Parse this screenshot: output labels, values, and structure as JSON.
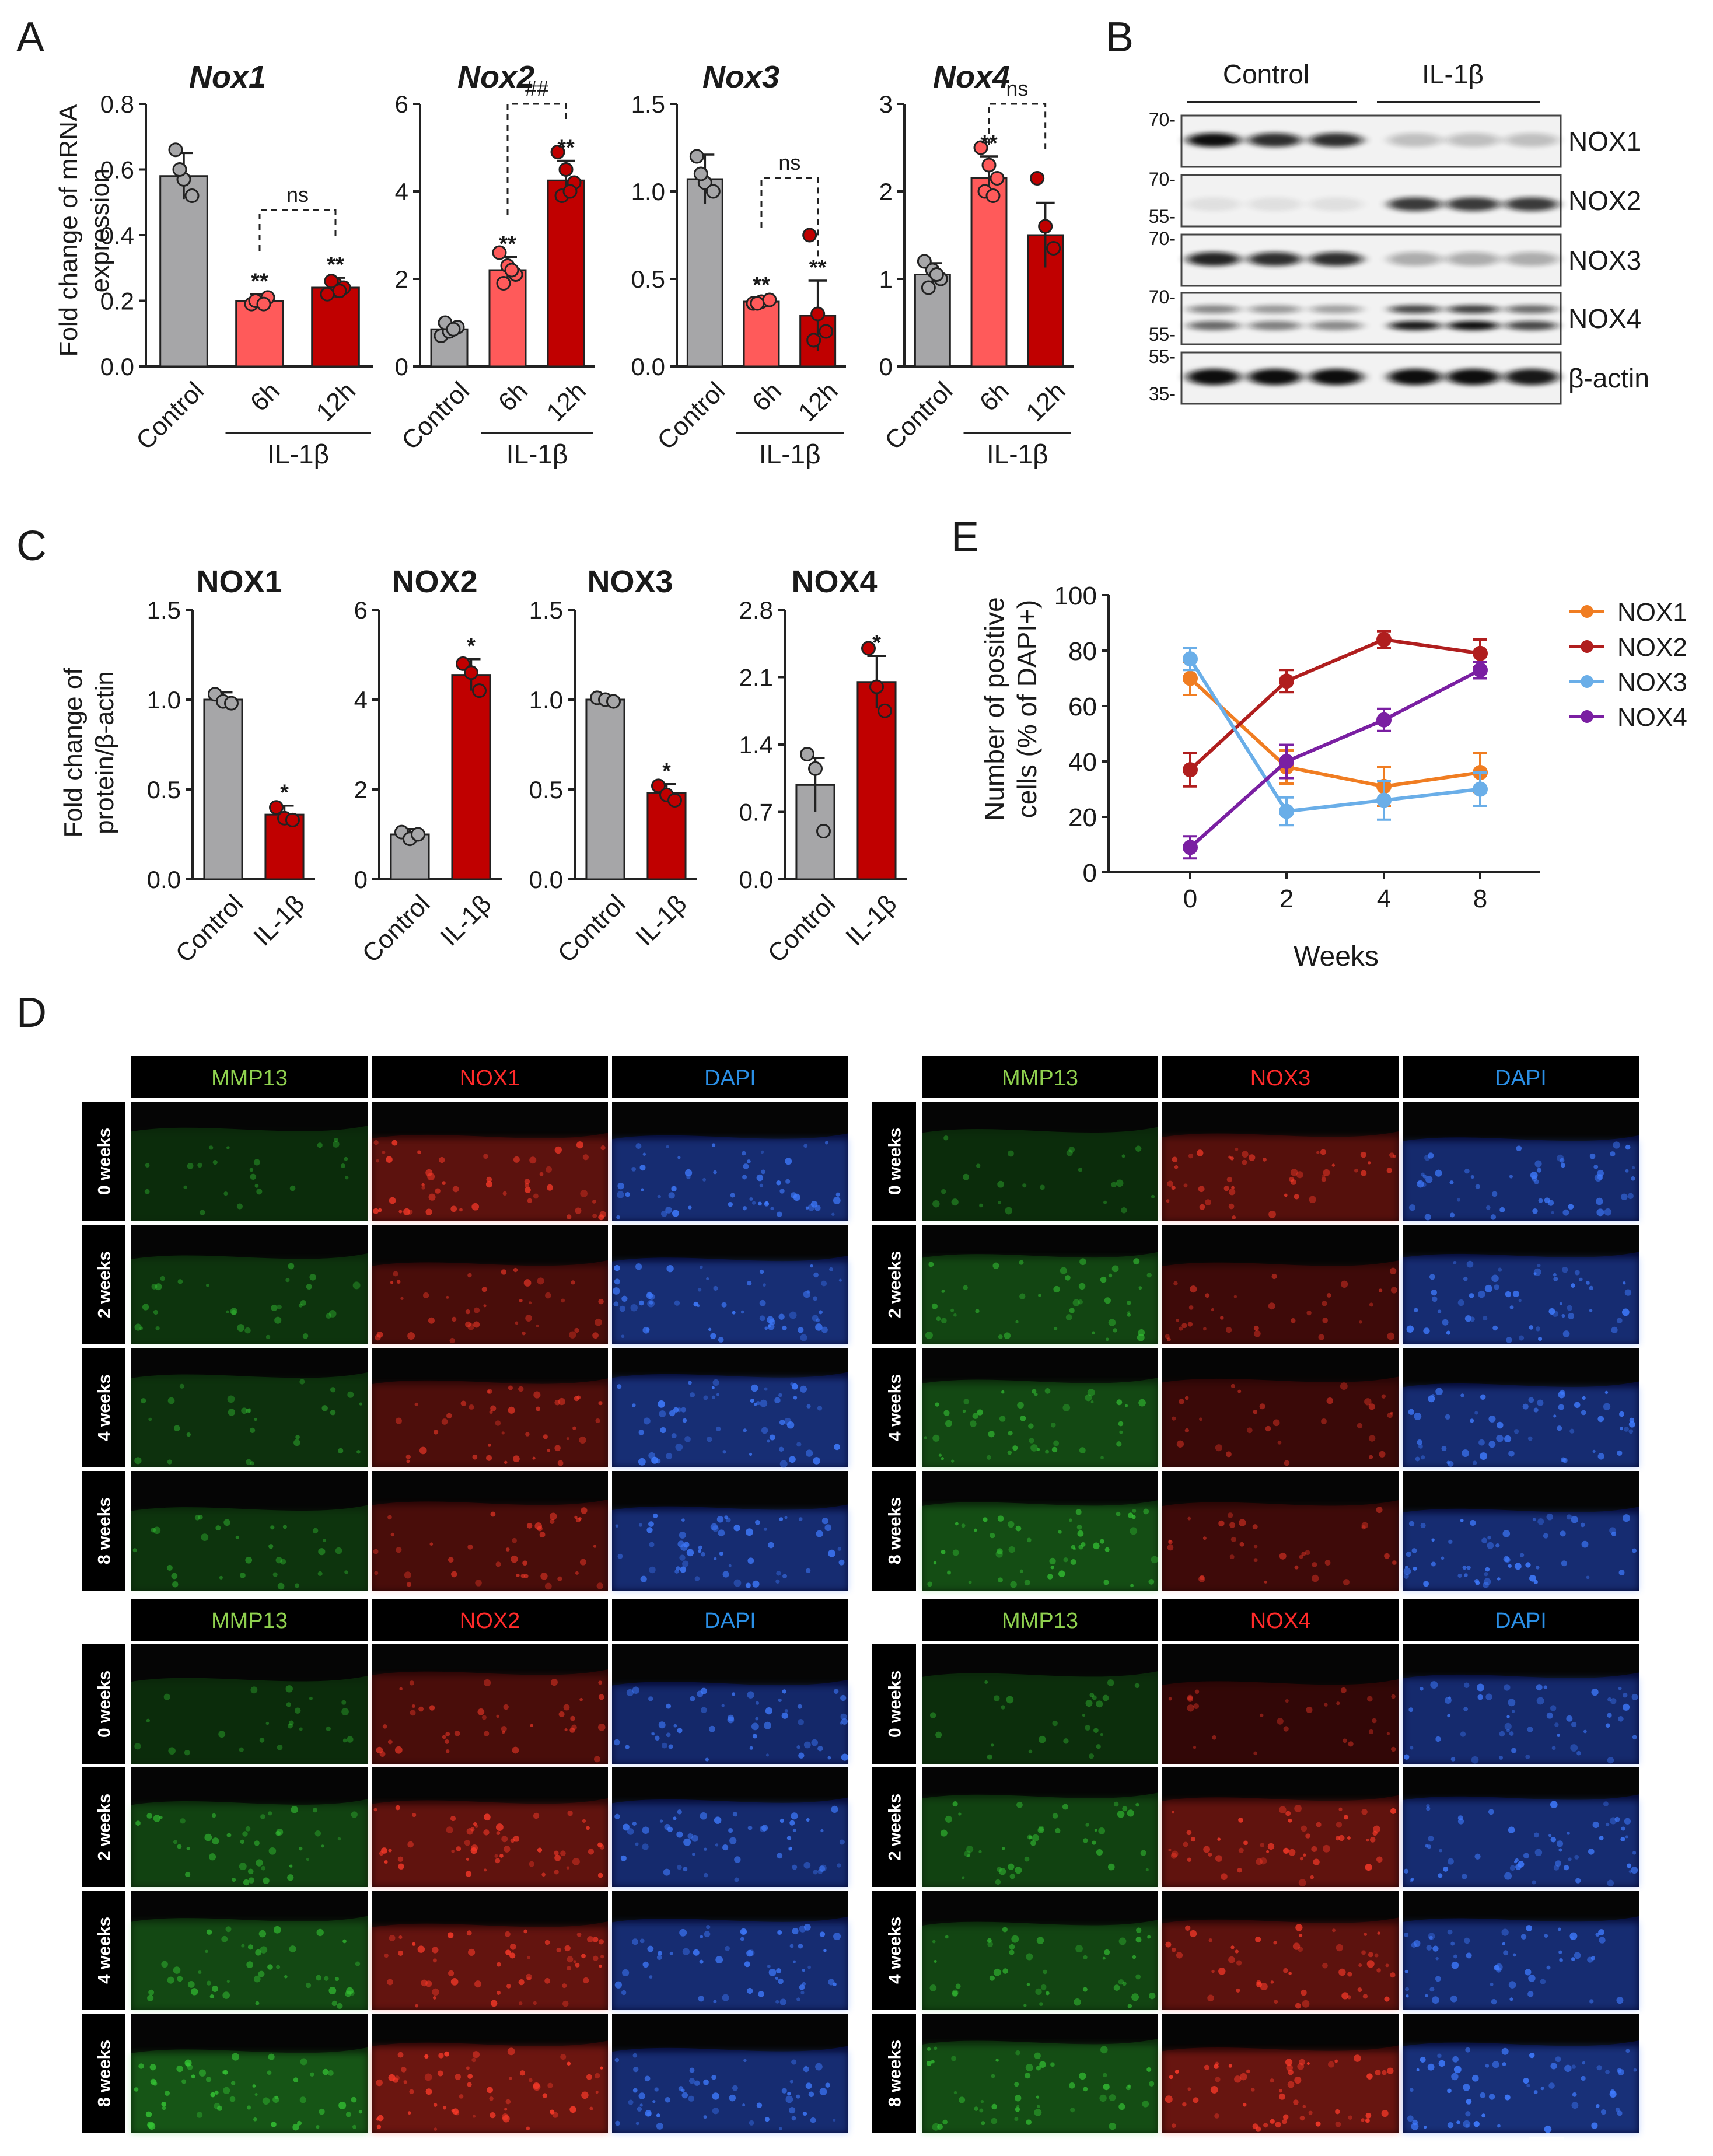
{
  "panels": {
    "A": "A",
    "B": "B",
    "C": "C",
    "D": "D",
    "E": "E"
  },
  "colors": {
    "control": "#a6a6a8",
    "h6": "#ff5a5a",
    "h12": "#c00000",
    "nox1": "#f07d22",
    "nox2": "#b01e1e",
    "nox3": "#6aaee8",
    "nox4": "#7a1fa2"
  },
  "panelA": {
    "ylabel_line1": "Fold change of mRNA",
    "ylabel_line2": "expression",
    "group_label": "IL-1β",
    "charts": [
      {
        "title": "Nox1",
        "yticks": [
          "0.0",
          "0.2",
          "0.4",
          "0.6",
          "0.8"
        ],
        "categories": [
          "Control",
          "6h",
          "12h"
        ],
        "bracket": {
          "from": 1,
          "to": 2,
          "label": "ns"
        },
        "stars": [
          "",
          "**",
          "**"
        ]
      },
      {
        "title": "Nox2",
        "yticks": [
          "0",
          "2",
          "4",
          "6"
        ],
        "categories": [
          "Control",
          "6h",
          "12h"
        ],
        "bracket": {
          "from": 1,
          "to": 2,
          "label": "##"
        },
        "stars": [
          "",
          "**",
          "**"
        ]
      },
      {
        "title": "Nox3",
        "yticks": [
          "0.0",
          "0.5",
          "1.0",
          "1.5"
        ],
        "categories": [
          "Control",
          "6h",
          "12h"
        ],
        "bracket": {
          "from": 1,
          "to": 2,
          "label": "ns"
        },
        "stars": [
          "",
          "**",
          "**"
        ]
      },
      {
        "title": "Nox4",
        "yticks": [
          "0",
          "1",
          "2",
          "3"
        ],
        "categories": [
          "Control",
          "6h",
          "12h"
        ],
        "bracket": {
          "from": 1,
          "to": 2,
          "label": "ns"
        },
        "stars": [
          "",
          "**",
          ""
        ]
      }
    ]
  },
  "panelB": {
    "groups": [
      "Control",
      "IL-1β"
    ],
    "blots": [
      {
        "label": "NOX1",
        "markers": [
          "70-"
        ]
      },
      {
        "label": "NOX2",
        "markers": [
          "70-",
          "55-"
        ]
      },
      {
        "label": "NOX3",
        "markers": [
          "70-"
        ]
      },
      {
        "label": "NOX4",
        "markers": [
          "70-",
          "55-"
        ]
      },
      {
        "label": "β-actin",
        "markers": [
          "55-",
          "35-"
        ]
      }
    ]
  },
  "panelC": {
    "ylabel_line1": "Fold change of",
    "ylabel_line2": "protein/β-actin",
    "charts": [
      {
        "title": "NOX1",
        "yticks": [
          "0.0",
          "0.5",
          "1.0",
          "1.5"
        ],
        "categories": [
          "Control",
          "IL-1β"
        ],
        "stars": [
          "",
          "*"
        ]
      },
      {
        "title": "NOX2",
        "yticks": [
          "0",
          "2",
          "4",
          "6"
        ],
        "categories": [
          "Control",
          "IL-1β"
        ],
        "stars": [
          "",
          "*"
        ]
      },
      {
        "title": "NOX3",
        "yticks": [
          "0.0",
          "0.5",
          "1.0",
          "1.5"
        ],
        "categories": [
          "Control",
          "IL-1β"
        ],
        "stars": [
          "",
          "*"
        ]
      },
      {
        "title": "NOX4",
        "yticks": [
          "0.0",
          "0.7",
          "1.4",
          "2.1",
          "2.8"
        ],
        "categories": [
          "Control",
          "IL-1β"
        ],
        "stars": [
          "",
          "*"
        ]
      }
    ]
  },
  "panelE": {
    "ylabel_line1": "Number of positive",
    "ylabel_line2": "cells (% of DAPI+)",
    "xlabel": "Weeks",
    "xticks": [
      "0",
      "2",
      "4",
      "8"
    ],
    "yticks": [
      "0",
      "20",
      "40",
      "60",
      "80",
      "100"
    ],
    "legend": [
      "NOX1",
      "NOX2",
      "NOX3",
      "NOX4"
    ]
  },
  "panelD": {
    "blocks": [
      {
        "headers": [
          "MMP13",
          "NOX1",
          "DAPI"
        ],
        "rows": [
          "0 weeks",
          "2 weeks",
          "4 weeks",
          "8 weeks"
        ]
      },
      {
        "headers": [
          "MMP13",
          "NOX3",
          "DAPI"
        ],
        "rows": [
          "0 weeks",
          "2 weeks",
          "4 weeks",
          "8 weeks"
        ]
      },
      {
        "headers": [
          "MMP13",
          "NOX2",
          "DAPI"
        ],
        "rows": [
          "0 weeks",
          "2 weeks",
          "4 weeks",
          "8 weeks"
        ]
      },
      {
        "headers": [
          "MMP13",
          "NOX4",
          "DAPI"
        ],
        "rows": [
          "0 weeks",
          "2 weeks",
          "4 weeks",
          "8 weeks"
        ]
      }
    ]
  },
  "chart_data": [
    {
      "type": "bar",
      "title": "Nox1",
      "categories": [
        "Control",
        "6h",
        "12h"
      ],
      "values": [
        0.58,
        0.2,
        0.24
      ],
      "errors": [
        0.07,
        0.02,
        0.03
      ],
      "ylabel": "Fold change of mRNA expression",
      "ylim": [
        0,
        0.8
      ],
      "points": [
        [
          0.66,
          0.57,
          0.52,
          0.6
        ],
        [
          0.19,
          0.2,
          0.21,
          0.2,
          0.19
        ],
        [
          0.22,
          0.25,
          0.24,
          0.26,
          0.23
        ]
      ]
    },
    {
      "type": "bar",
      "title": "Nox2",
      "categories": [
        "Control",
        "6h",
        "12h"
      ],
      "values": [
        0.85,
        2.2,
        4.25
      ],
      "errors": [
        0.15,
        0.3,
        0.45
      ],
      "ylabel": "Fold change of mRNA expression",
      "ylim": [
        0,
        6
      ],
      "points": [
        [
          0.7,
          0.8,
          0.9,
          1.0,
          0.85
        ],
        [
          2.6,
          2.3,
          2.1,
          1.9,
          2.2
        ],
        [
          4.9,
          4.5,
          4.2,
          3.9,
          4.0
        ]
      ]
    },
    {
      "type": "bar",
      "title": "Nox3",
      "categories": [
        "Control",
        "6h",
        "12h"
      ],
      "values": [
        1.07,
        0.37,
        0.29
      ],
      "errors": [
        0.14,
        0.02,
        0.2
      ],
      "ylabel": "Fold change of mRNA expression",
      "ylim": [
        0,
        1.5
      ],
      "points": [
        [
          1.2,
          1.05,
          1.0,
          1.1
        ],
        [
          0.36,
          0.37,
          0.38,
          0.36
        ],
        [
          0.75,
          0.3,
          0.2,
          0.15
        ]
      ]
    },
    {
      "type": "bar",
      "title": "Nox4",
      "categories": [
        "Control",
        "6h",
        "12h"
      ],
      "values": [
        1.05,
        2.15,
        1.5
      ],
      "errors": [
        0.13,
        0.25,
        0.37
      ],
      "ylabel": "Fold change of mRNA expression",
      "ylim": [
        0,
        3
      ],
      "points": [
        [
          1.2,
          1.1,
          1.0,
          0.9,
          1.05
        ],
        [
          2.5,
          2.3,
          2.15,
          2.0,
          1.95
        ],
        [
          2.15,
          1.6,
          1.35
        ]
      ]
    },
    {
      "type": "bar",
      "title": "NOX1",
      "categories": [
        "Control",
        "IL-1β"
      ],
      "values": [
        1.0,
        0.36
      ],
      "errors": [
        0.04,
        0.05
      ],
      "ylabel": "Fold change of protein/β-actin",
      "ylim": [
        0,
        1.5
      ],
      "points": [
        [
          1.03,
          0.99,
          0.98
        ],
        [
          0.4,
          0.34,
          0.33
        ]
      ]
    },
    {
      "type": "bar",
      "title": "NOX2",
      "categories": [
        "Control",
        "IL-1β"
      ],
      "values": [
        1.0,
        4.55
      ],
      "errors": [
        0.12,
        0.35
      ],
      "ylabel": "Fold change of protein/β-actin",
      "ylim": [
        0,
        6
      ],
      "points": [
        [
          1.05,
          0.9,
          1.0
        ],
        [
          4.8,
          4.6,
          4.2
        ]
      ]
    },
    {
      "type": "bar",
      "title": "NOX3",
      "categories": [
        "Control",
        "IL-1β"
      ],
      "values": [
        1.0,
        0.48
      ],
      "errors": [
        0.02,
        0.05
      ],
      "ylabel": "Fold change of protein/β-actin",
      "ylim": [
        0,
        1.5
      ],
      "points": [
        [
          1.01,
          1.0,
          0.99
        ],
        [
          0.52,
          0.47,
          0.44
        ]
      ]
    },
    {
      "type": "bar",
      "title": "NOX4",
      "categories": [
        "Control",
        "IL-1β"
      ],
      "values": [
        0.98,
        2.05
      ],
      "errors": [
        0.28,
        0.27
      ],
      "ylabel": "Fold change of protein/β-actin",
      "ylim": [
        0,
        2.8
      ],
      "points": [
        [
          1.3,
          1.15,
          0.5
        ],
        [
          2.4,
          2.0,
          1.75
        ]
      ]
    },
    {
      "type": "line",
      "xlabel": "Weeks",
      "ylabel": "Number of positive cells (% of DAPI+)",
      "x": [
        0,
        2,
        4,
        8
      ],
      "ylim": [
        0,
        100
      ],
      "series": [
        {
          "name": "NOX1",
          "values": [
            70,
            38,
            31,
            36
          ],
          "errors": [
            6,
            6,
            7,
            7
          ]
        },
        {
          "name": "NOX2",
          "values": [
            37,
            69,
            84,
            79
          ],
          "errors": [
            6,
            4,
            3,
            5
          ]
        },
        {
          "name": "NOX3",
          "values": [
            77,
            22,
            26,
            30
          ],
          "errors": [
            4,
            5,
            7,
            6
          ]
        },
        {
          "name": "NOX4",
          "values": [
            9,
            40,
            55,
            73
          ],
          "errors": [
            4,
            6,
            4,
            3
          ]
        }
      ]
    }
  ]
}
